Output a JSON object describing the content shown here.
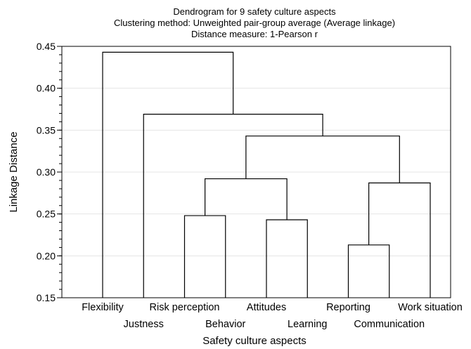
{
  "chart_data": {
    "type": "dendrogram",
    "title_lines": [
      "Dendrogram for 9 safety culture aspects",
      "Clustering method: Unweighted pair-group average (Average linkage)",
      "Distance measure: 1-Pearson r"
    ],
    "xlabel": "Safety culture aspects",
    "ylabel": "Linkage Distance",
    "ylim": [
      0.15,
      0.45
    ],
    "yticks": [
      "0.15",
      "0.20",
      "0.25",
      "0.30",
      "0.35",
      "0.40",
      "0.45"
    ],
    "grid": true,
    "leaves": [
      "Flexibility",
      "Justness",
      "Risk perception",
      "Behavior",
      "Attitudes",
      "Learning",
      "Reporting",
      "Communication",
      "Work situation"
    ],
    "merges": [
      {
        "left": "Reporting",
        "right": "Communication",
        "distance": 0.213
      },
      {
        "left": "Attitudes",
        "right": "Learning",
        "distance": 0.243
      },
      {
        "left": "Risk perception",
        "right": "Behavior",
        "distance": 0.248
      },
      {
        "left": "Reporting + Communication",
        "right": "Work situation",
        "distance": 0.287
      },
      {
        "left": "Risk perception + Behavior",
        "right": "Attitudes + Learning",
        "distance": 0.292
      },
      {
        "left": "Risk perception + Behavior + Attitudes + Learning",
        "right": "Reporting + Communication + Work situation",
        "distance": 0.343
      },
      {
        "left": "Justness",
        "right": "Risk perception + Behavior + Attitudes + Learning + Reporting + Communication + Work situation",
        "distance": 0.369
      },
      {
        "left": "Flexibility",
        "right": "Justness + Risk perception + Behavior + Attitudes + Learning + Reporting + Communication + Work situation",
        "distance": 0.443
      }
    ]
  }
}
